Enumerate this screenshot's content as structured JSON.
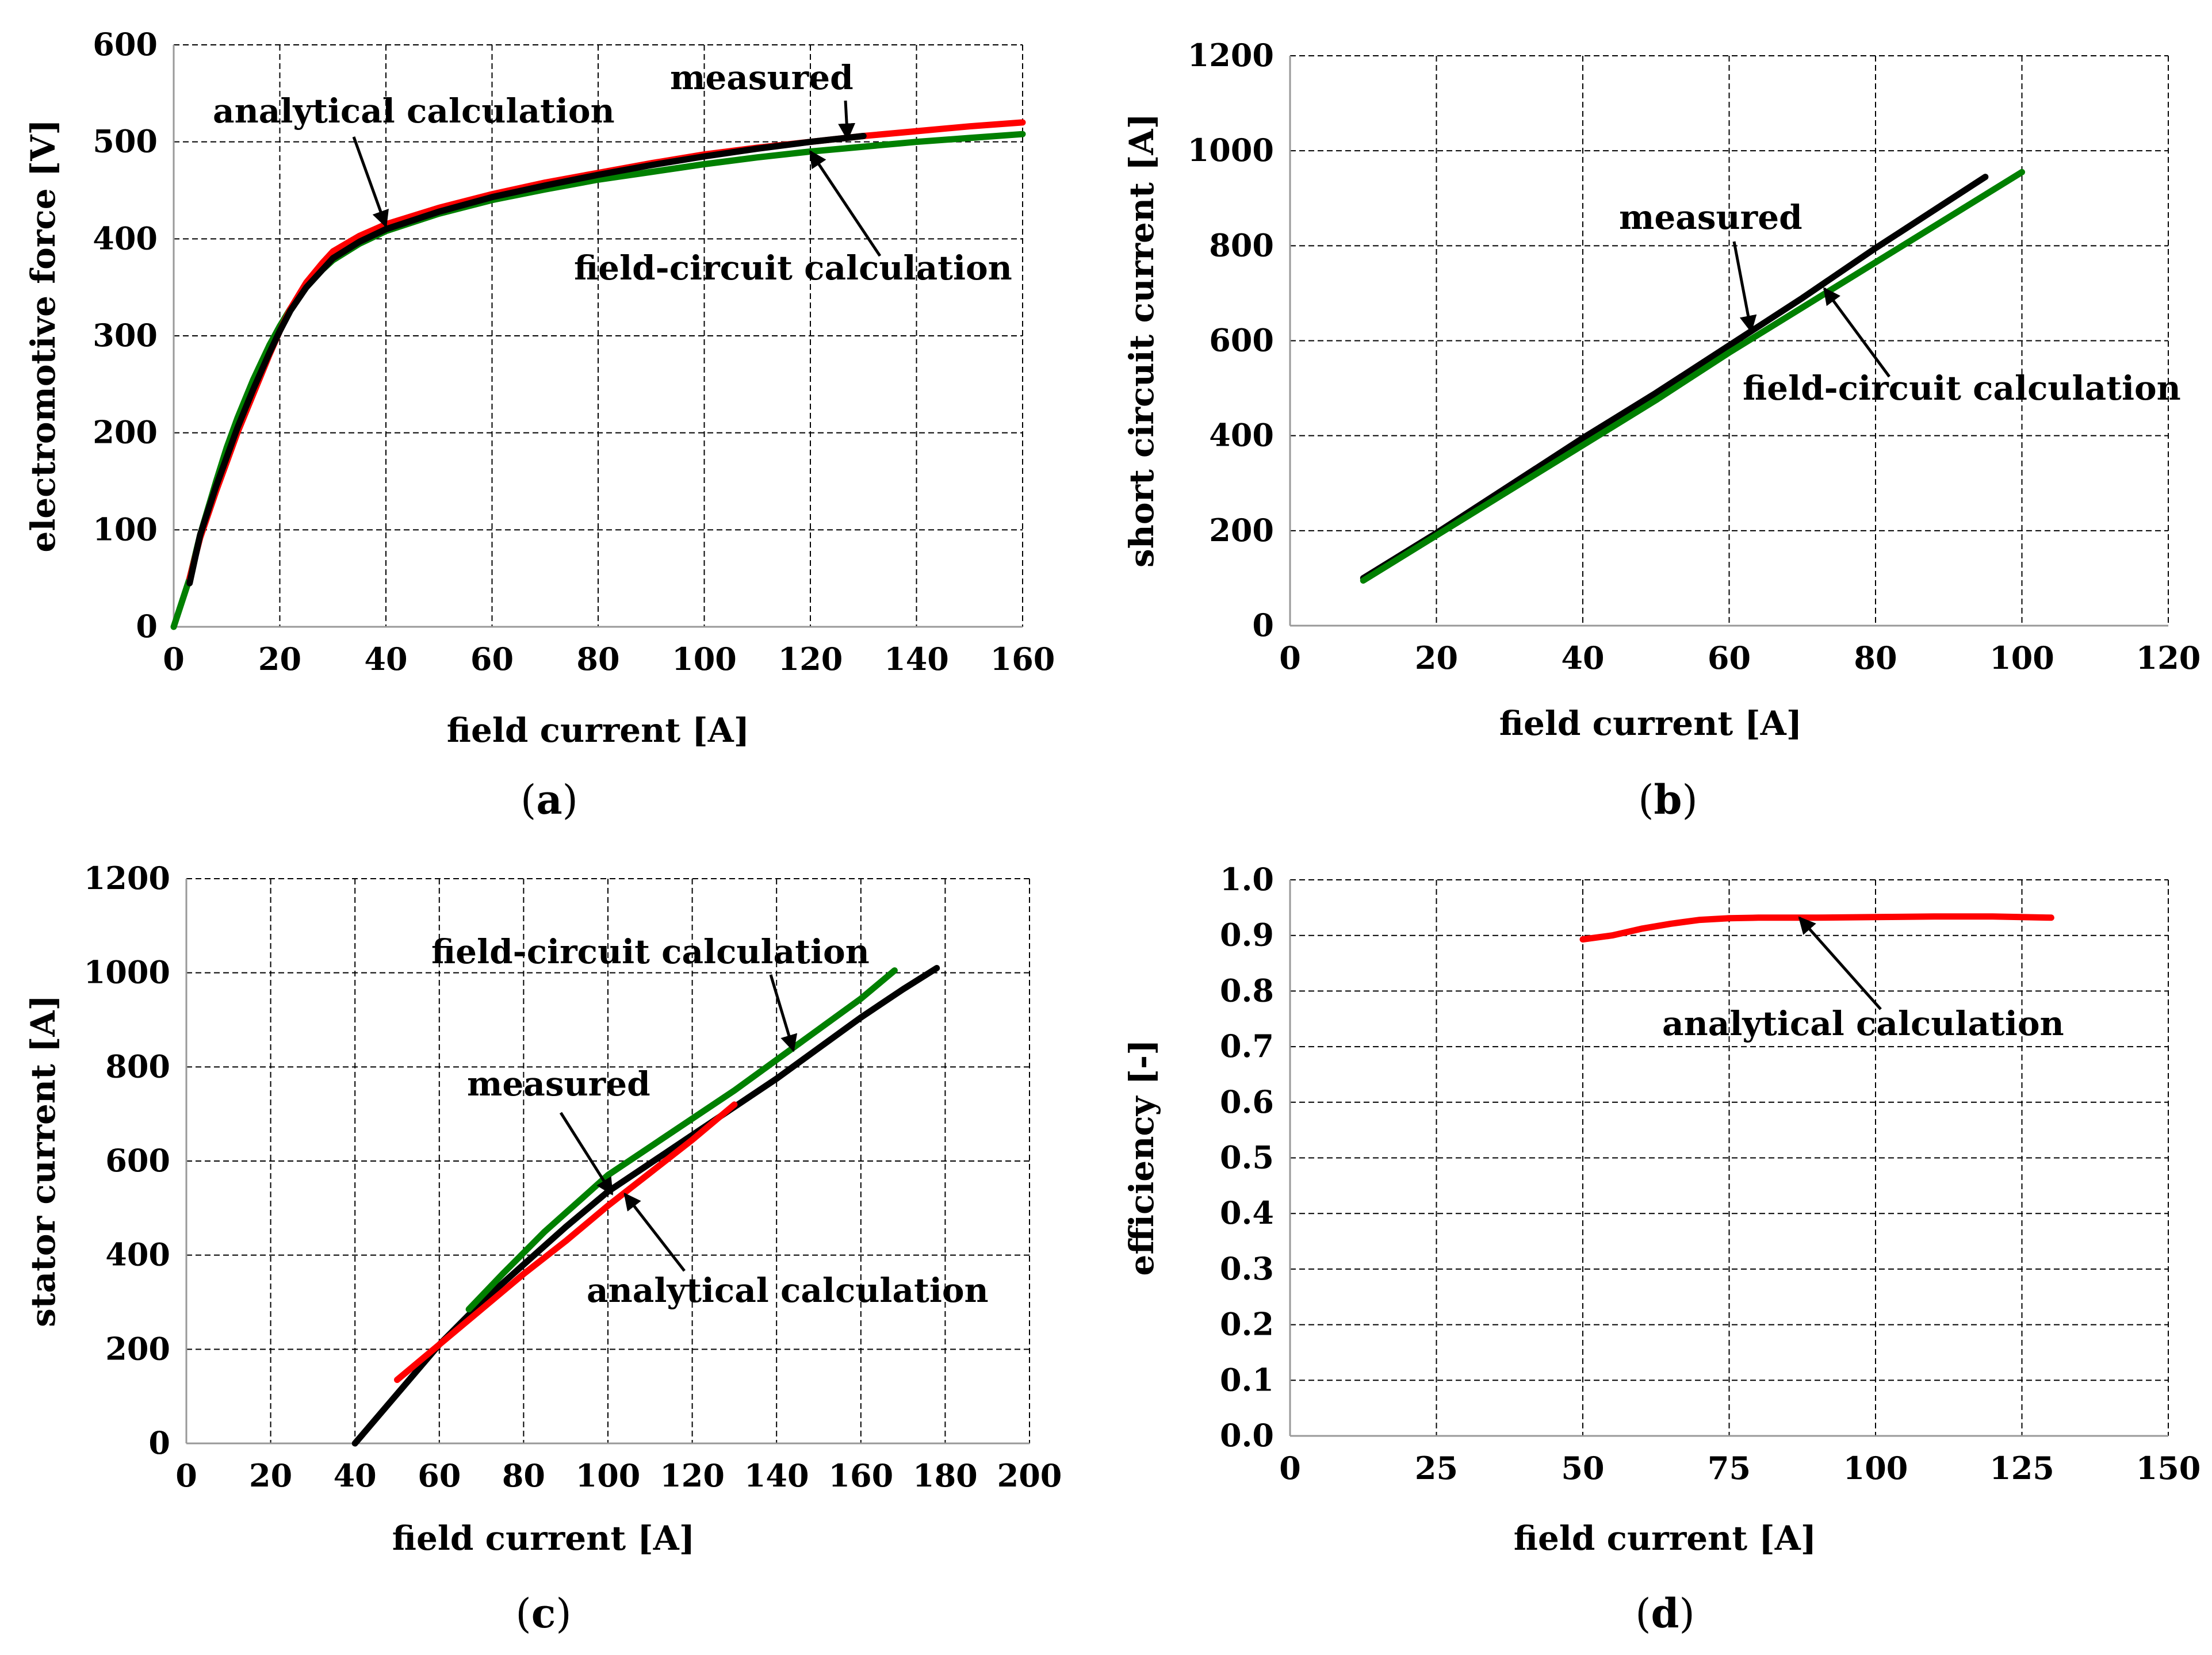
{
  "colors": {
    "measured": "#000000",
    "analytical": "#ff0000",
    "field_circuit": "#008000"
  },
  "chart_data": [
    {
      "id": "a",
      "type": "line",
      "panel_label": "(a)",
      "panel_letter": "a",
      "xlabel": "field current [A]",
      "ylabel": "electromotive force [V]",
      "xlim": [
        0,
        160
      ],
      "ylim": [
        0,
        600
      ],
      "xticks": [
        0,
        20,
        40,
        60,
        80,
        100,
        120,
        140,
        160
      ],
      "yticks": [
        0,
        100,
        200,
        300,
        400,
        500,
        600
      ],
      "xtick_labels": [
        "0",
        "20",
        "40",
        "60",
        "80",
        "100",
        "120",
        "140",
        "160"
      ],
      "ytick_labels": [
        "0",
        "100",
        "200",
        "300",
        "400",
        "500",
        "600"
      ],
      "grid": true,
      "series": [
        {
          "name": "field-circuit calculation",
          "color_key": "field_circuit",
          "x": [
            0,
            3,
            5,
            8,
            10,
            12,
            15,
            18,
            20,
            22,
            25,
            28,
            30,
            35,
            40,
            50,
            60,
            70,
            80,
            90,
            100,
            110,
            120,
            130,
            140,
            150,
            160
          ],
          "y": [
            0,
            50,
            95,
            150,
            185,
            215,
            255,
            290,
            310,
            328,
            350,
            368,
            378,
            395,
            408,
            426,
            440,
            451,
            461,
            469,
            477,
            484,
            490,
            495,
            500,
            504,
            508
          ]
        },
        {
          "name": "analytical calculation",
          "color_key": "analytical",
          "x": [
            3,
            5,
            8,
            10,
            12,
            15,
            18,
            20,
            22,
            25,
            28,
            30,
            35,
            40,
            50,
            60,
            70,
            80,
            90,
            100,
            110,
            120,
            130,
            140,
            150,
            160
          ],
          "y": [
            50,
            92,
            140,
            170,
            200,
            240,
            280,
            305,
            328,
            355,
            375,
            387,
            403,
            415,
            432,
            446,
            458,
            468,
            478,
            487,
            494,
            500,
            506,
            511,
            516,
            520
          ]
        },
        {
          "name": "measured",
          "color_key": "measured",
          "x": [
            3,
            5,
            8,
            10,
            12,
            15,
            18,
            20,
            22,
            25,
            28,
            30,
            35,
            40,
            50,
            60,
            70,
            80,
            90,
            100,
            110,
            120,
            130
          ],
          "y": [
            45,
            95,
            145,
            175,
            205,
            245,
            282,
            305,
            326,
            350,
            368,
            380,
            397,
            410,
            428,
            443,
            455,
            466,
            476,
            485,
            493,
            500,
            506
          ]
        }
      ],
      "annotations": [
        {
          "text": "analytical calculation",
          "pointer_x": 40,
          "pointer_y": 413
        },
        {
          "text": "measured",
          "pointer_x": 127,
          "pointer_y": 503
        },
        {
          "text": "field-circuit  calculation",
          "pointer_x": 120,
          "pointer_y": 490
        }
      ]
    },
    {
      "id": "b",
      "type": "line",
      "panel_label": "(b)",
      "panel_letter": "b",
      "xlabel": "field current [A]",
      "ylabel": "short circuit  current [A]",
      "xlim": [
        0,
        120
      ],
      "ylim": [
        0,
        1200
      ],
      "xticks": [
        0,
        20,
        40,
        60,
        80,
        100,
        120
      ],
      "yticks": [
        0,
        200,
        400,
        600,
        800,
        1000,
        1200
      ],
      "xtick_labels": [
        "0",
        "20",
        "40",
        "60",
        "80",
        "100",
        "120"
      ],
      "ytick_labels": [
        "0",
        "200",
        "400",
        "600",
        "800",
        "1000",
        "1200"
      ],
      "grid": true,
      "series": [
        {
          "name": "measured",
          "color_key": "measured",
          "x": [
            10,
            20,
            30,
            40,
            50,
            60,
            70,
            80,
            90,
            95
          ],
          "y": [
            100,
            195,
            295,
            395,
            490,
            590,
            690,
            795,
            895,
            945
          ]
        },
        {
          "name": "field-circuit calculation",
          "color_key": "field_circuit",
          "x": [
            10,
            20,
            30,
            40,
            50,
            60,
            70,
            80,
            90,
            100
          ],
          "y": [
            95,
            190,
            285,
            380,
            475,
            575,
            670,
            765,
            860,
            955
          ]
        }
      ],
      "annotations": [
        {
          "text": "measured",
          "pointer_x": 63,
          "pointer_y": 620
        },
        {
          "text": "field-circuit calculation",
          "pointer_x": 73,
          "pointer_y": 710
        }
      ]
    },
    {
      "id": "c",
      "type": "line",
      "panel_label": "(c)",
      "panel_letter": "c",
      "xlabel": "field current [A]",
      "ylabel": "stator current [A]",
      "xlim": [
        0,
        200
      ],
      "ylim": [
        0,
        1200
      ],
      "xticks": [
        0,
        20,
        40,
        60,
        80,
        100,
        120,
        140,
        160,
        180,
        200
      ],
      "yticks": [
        0,
        200,
        400,
        600,
        800,
        1000,
        1200
      ],
      "xtick_labels": [
        "0",
        "20",
        "40",
        "60",
        "80",
        "100",
        "120",
        "140",
        "160",
        "180",
        "200"
      ],
      "ytick_labels": [
        "0",
        "200",
        "400",
        "600",
        "800",
        "1000",
        "1200"
      ],
      "grid": true,
      "series": [
        {
          "name": "measured",
          "color_key": "measured",
          "x": [
            40,
            50,
            60,
            70,
            80,
            90,
            100,
            110,
            120,
            130,
            140,
            150,
            160,
            170,
            178
          ],
          "y": [
            0,
            105,
            210,
            300,
            380,
            460,
            535,
            595,
            655,
            715,
            775,
            840,
            905,
            965,
            1010
          ]
        },
        {
          "name": "analytical calculation",
          "color_key": "analytical",
          "x": [
            50,
            60,
            70,
            80,
            90,
            100,
            110,
            120,
            130
          ],
          "y": [
            135,
            210,
            285,
            360,
            430,
            505,
            575,
            645,
            720
          ]
        },
        {
          "name": "field-circuit calculation",
          "color_key": "field_circuit",
          "x": [
            67,
            75,
            85,
            95,
            100,
            110,
            120,
            130,
            140,
            150,
            160,
            168
          ],
          "y": [
            285,
            360,
            450,
            530,
            570,
            630,
            690,
            750,
            815,
            880,
            945,
            1005
          ]
        }
      ],
      "annotations": [
        {
          "text": "field-circuit calculation",
          "pointer_x": 144,
          "pointer_y": 835
        },
        {
          "text": "measured",
          "pointer_x": 101,
          "pointer_y": 530
        },
        {
          "text": "analytical calculation",
          "pointer_x": 104,
          "pointer_y": 530
        }
      ]
    },
    {
      "id": "d",
      "type": "line",
      "panel_label": "(d)",
      "panel_letter": "d",
      "xlabel": "field current [A]",
      "ylabel": "efficiency [-]",
      "xlim": [
        0,
        150
      ],
      "ylim": [
        0,
        1
      ],
      "xticks": [
        0,
        25,
        50,
        75,
        100,
        125,
        150
      ],
      "yticks": [
        0,
        0.1,
        0.2,
        0.3,
        0.4,
        0.5,
        0.6,
        0.7,
        0.8,
        0.9,
        1.0
      ],
      "xtick_labels": [
        "0",
        "25",
        "50",
        "75",
        "100",
        "125",
        "150"
      ],
      "ytick_labels": [
        "0.0",
        "0.1",
        "0.2",
        "0.3",
        "0.4",
        "0.5",
        "0.6",
        "0.7",
        "0.8",
        "0.9",
        "1.0"
      ],
      "grid": true,
      "series": [
        {
          "name": "analytical calculation",
          "color_key": "analytical",
          "x": [
            50,
            55,
            60,
            65,
            70,
            75,
            80,
            90,
            100,
            110,
            120,
            130
          ],
          "y": [
            0.893,
            0.9,
            0.912,
            0.921,
            0.928,
            0.931,
            0.932,
            0.932,
            0.933,
            0.934,
            0.934,
            0.932
          ]
        }
      ],
      "annotations": [
        {
          "text": "analytical calculation",
          "pointer_x": 87,
          "pointer_y": 0.932
        }
      ]
    }
  ]
}
